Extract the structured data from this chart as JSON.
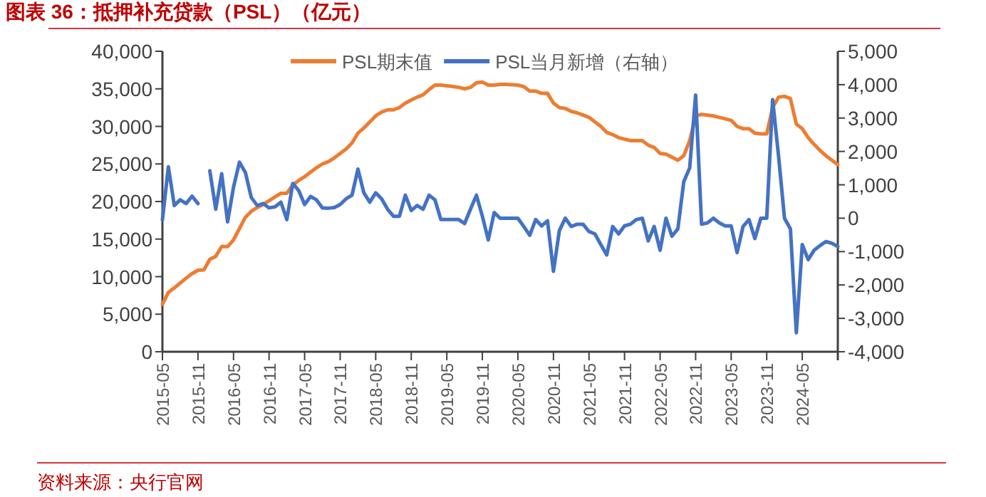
{
  "chart_data": {
    "type": "line",
    "title": "图表 36：抵押补充贷款（PSL）（亿元）",
    "annotations": [
      "资料来源：央行官网"
    ],
    "categories": [
      "2015-05",
      null,
      null,
      null,
      null,
      null,
      "2015-11",
      null,
      null,
      null,
      null,
      null,
      "2016-05",
      null,
      null,
      null,
      null,
      null,
      "2016-11",
      null,
      null,
      null,
      null,
      null,
      "2017-05",
      null,
      null,
      null,
      null,
      null,
      "2017-11",
      null,
      null,
      null,
      null,
      null,
      "2018-05",
      null,
      null,
      null,
      null,
      null,
      "2018-11",
      null,
      null,
      null,
      null,
      null,
      "2019-05",
      null,
      null,
      null,
      null,
      null,
      "2019-11",
      null,
      null,
      null,
      null,
      null,
      "2020-05",
      null,
      null,
      null,
      null,
      null,
      "2020-11",
      null,
      null,
      null,
      null,
      null,
      "2021-05",
      null,
      null,
      null,
      null,
      null,
      "2021-11",
      null,
      null,
      null,
      null,
      null,
      "2022-05",
      null,
      null,
      null,
      null,
      null,
      "2022-11",
      null,
      null,
      null,
      null,
      null,
      "2023-05",
      null,
      null,
      null,
      null,
      null,
      "2023-11",
      null,
      null,
      null,
      null,
      null,
      "2024-05",
      null,
      null,
      null,
      null,
      null,
      null
    ],
    "series": [
      {
        "name": "PSL期末值",
        "color": "#ed7d31",
        "values": [
          6330,
          7900,
          8500,
          9150,
          9800,
          10400,
          10850,
          10900,
          12300,
          12700,
          14000,
          14000,
          14900,
          16400,
          17900,
          18700,
          19200,
          19600,
          20100,
          20600,
          21100,
          21100,
          22200,
          22800,
          23300,
          23900,
          24500,
          25000,
          25300,
          25800,
          26400,
          27000,
          27800,
          29100,
          29800,
          30600,
          31400,
          31900,
          32200,
          32200,
          32500,
          33100,
          33500,
          33900,
          34200,
          34900,
          35500,
          35500,
          35400,
          35300,
          35200,
          35000,
          35200,
          35800,
          35900,
          35500,
          35500,
          35600,
          35600,
          35550,
          35500,
          35300,
          34700,
          34700,
          34400,
          34400,
          33100,
          32500,
          32400,
          32000,
          31800,
          31500,
          31200,
          30600,
          30000,
          29200,
          28900,
          28500,
          28300,
          28100,
          28100,
          28100,
          27500,
          27200,
          26400,
          26300,
          25900,
          25500,
          26100,
          28100,
          31400,
          31600,
          31500,
          31400,
          31200,
          31000,
          30800,
          30000,
          29700,
          29700,
          29100,
          29000,
          29000,
          32500,
          33900,
          34000,
          33700,
          30300,
          29700,
          28500,
          27600,
          26800,
          26100,
          25500,
          24900
        ]
      },
      {
        "name": "PSL当月新增（右轴）",
        "color": "#4472c4",
        "axis": "y2",
        "values": [
          -50,
          1540,
          380,
          550,
          440,
          660,
          440,
          null,
          1420,
          270,
          1330,
          -110,
          930,
          1680,
          1370,
          620,
          380,
          440,
          310,
          340,
          480,
          -40,
          1040,
          830,
          410,
          650,
          550,
          310,
          300,
          320,
          410,
          580,
          690,
          1470,
          760,
          480,
          760,
          580,
          270,
          60,
          60,
          690,
          230,
          380,
          270,
          690,
          550,
          -40,
          -40,
          -40,
          -40,
          -160,
          270,
          690,
          60,
          -650,
          170,
          0,
          0,
          0,
          0,
          -250,
          -510,
          -40,
          -230,
          -80,
          -1590,
          -370,
          0,
          -250,
          -180,
          -180,
          -400,
          -470,
          -790,
          -1100,
          -250,
          -470,
          -230,
          -180,
          -40,
          0,
          -680,
          -250,
          -960,
          0,
          -540,
          -320,
          1090,
          1510,
          3690,
          -180,
          -140,
          0,
          -140,
          -230,
          -230,
          -1030,
          -250,
          -40,
          -610,
          0,
          0,
          3550,
          1860,
          0,
          -320,
          -3430,
          -790,
          -1240,
          -960,
          -820,
          -700,
          -750,
          -850
        ]
      }
    ],
    "ylim": [
      0,
      40000
    ],
    "yticks": [
      0,
      {
        "value": 5000,
        "label": "5,000"
      },
      {
        "value": 10000,
        "label": "10,000"
      },
      {
        "value": 15000,
        "label": "15,000"
      },
      {
        "value": 20000,
        "label": "20,000"
      },
      {
        "value": 25000,
        "label": "25,000"
      },
      {
        "value": 30000,
        "label": "30,000"
      },
      {
        "value": 35000,
        "label": "35,000"
      },
      {
        "value": 40000,
        "label": "40,000"
      }
    ],
    "y2lim": [
      -4000,
      5000
    ],
    "y2ticks": [
      {
        "value": -4000,
        "label": "-4,000"
      },
      {
        "value": -3000,
        "label": "-3,000"
      },
      {
        "value": -2000,
        "label": "-2,000"
      },
      {
        "value": -1000,
        "label": "-1,000"
      },
      0,
      {
        "value": 1000,
        "label": "1,000"
      },
      {
        "value": 2000,
        "label": "2,000"
      },
      {
        "value": 3000,
        "label": "3,000"
      },
      {
        "value": 4000,
        "label": "4,000"
      },
      {
        "value": 5000,
        "label": "5,000"
      }
    ],
    "legend": "top right"
  }
}
